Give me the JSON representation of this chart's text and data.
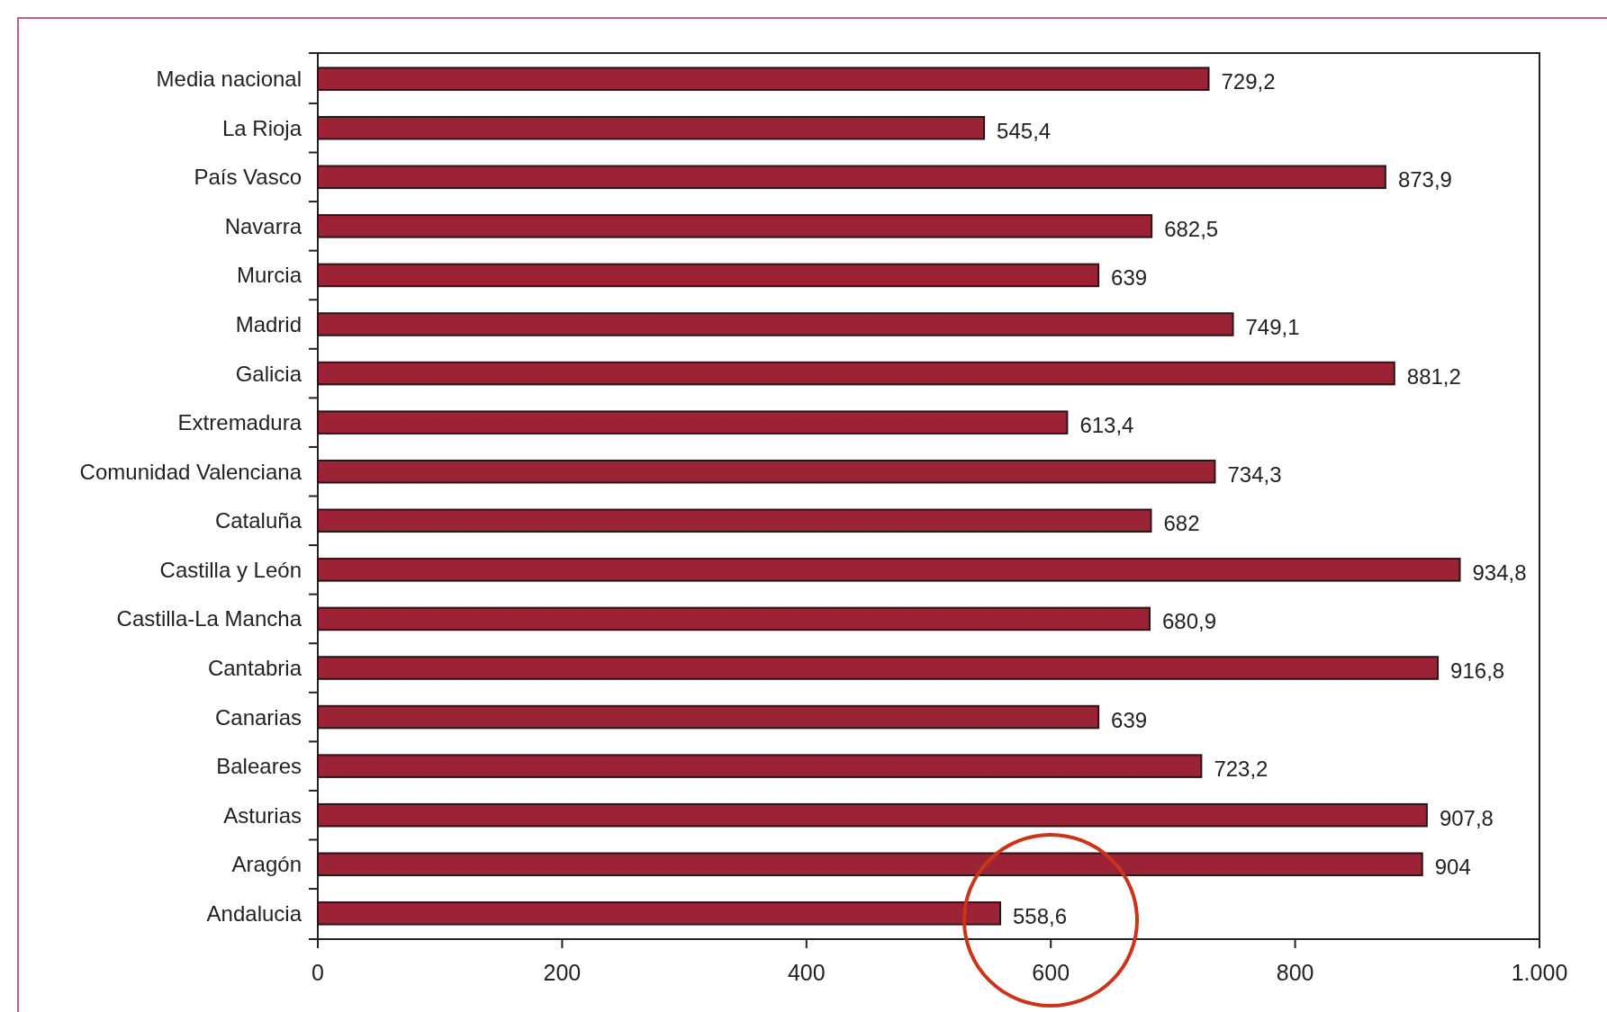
{
  "chart_data": {
    "type": "bar",
    "orientation": "horizontal",
    "categories": [
      "Media nacional",
      "La Rioja",
      "País Vasco",
      "Navarra",
      "Murcia",
      "Madrid",
      "Galicia",
      "Extremadura",
      "Comunidad Valenciana",
      "Cataluña",
      "Castilla y León",
      "Castilla-La Mancha",
      "Cantabria",
      "Canarias",
      "Baleares",
      "Asturias",
      "Aragón",
      "Andalucia"
    ],
    "values": [
      729.2,
      545.4,
      873.9,
      682.5,
      639,
      749.1,
      881.2,
      613.4,
      734.3,
      682,
      934.8,
      680.9,
      916.8,
      639,
      723.2,
      907.8,
      904,
      558.6
    ],
    "value_labels": [
      "729,2",
      "545,4",
      "873,9",
      "682,5",
      "639",
      "749,1",
      "881,2",
      "613,4",
      "734,3",
      "682",
      "934,8",
      "680,9",
      "916,8",
      "639",
      "723,2",
      "907,8",
      "904",
      "558,6"
    ],
    "color": "#9b2335",
    "xlim": [
      0,
      1000
    ],
    "xticks": [
      0,
      200,
      400,
      600,
      800,
      {
        "value": 1000,
        "label": "1.000"
      }
    ],
    "grid": false
  }
}
